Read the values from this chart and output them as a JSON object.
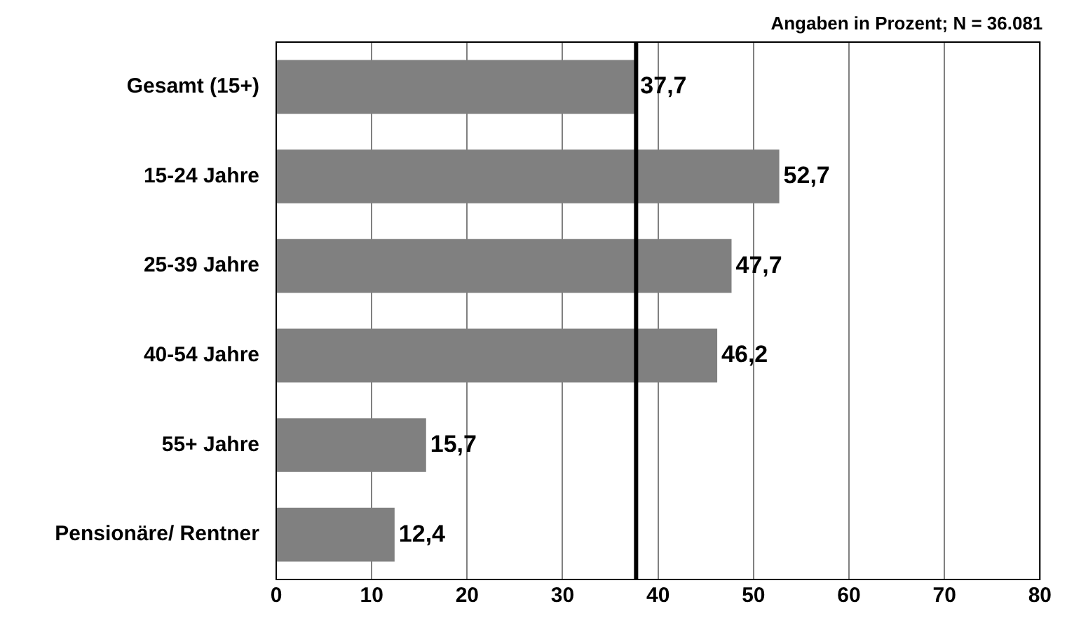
{
  "chart_data": {
    "type": "bar",
    "orientation": "horizontal",
    "categories": [
      "Gesamt (15+)",
      "15-24 Jahre",
      "25-39 Jahre",
      "40-54 Jahre",
      "55+ Jahre",
      "Pensionäre/ Rentner"
    ],
    "values": [
      37.7,
      52.7,
      47.7,
      46.2,
      15.7,
      12.4
    ],
    "color": "#808080",
    "xlim": [
      0,
      80
    ],
    "xticks": [
      0,
      10,
      20,
      30,
      40,
      50,
      60,
      70,
      80
    ],
    "value_labels": [
      "37,7",
      "52,7",
      "47,7",
      "46,2",
      "15,7",
      "12,4"
    ],
    "grid": "x",
    "legend": false,
    "ref_lines": [
      {
        "axis": "x",
        "value": 37.7,
        "color": "#000000"
      }
    ],
    "annotations": [
      "Angaben in Prozent; N = 36.081"
    ]
  }
}
